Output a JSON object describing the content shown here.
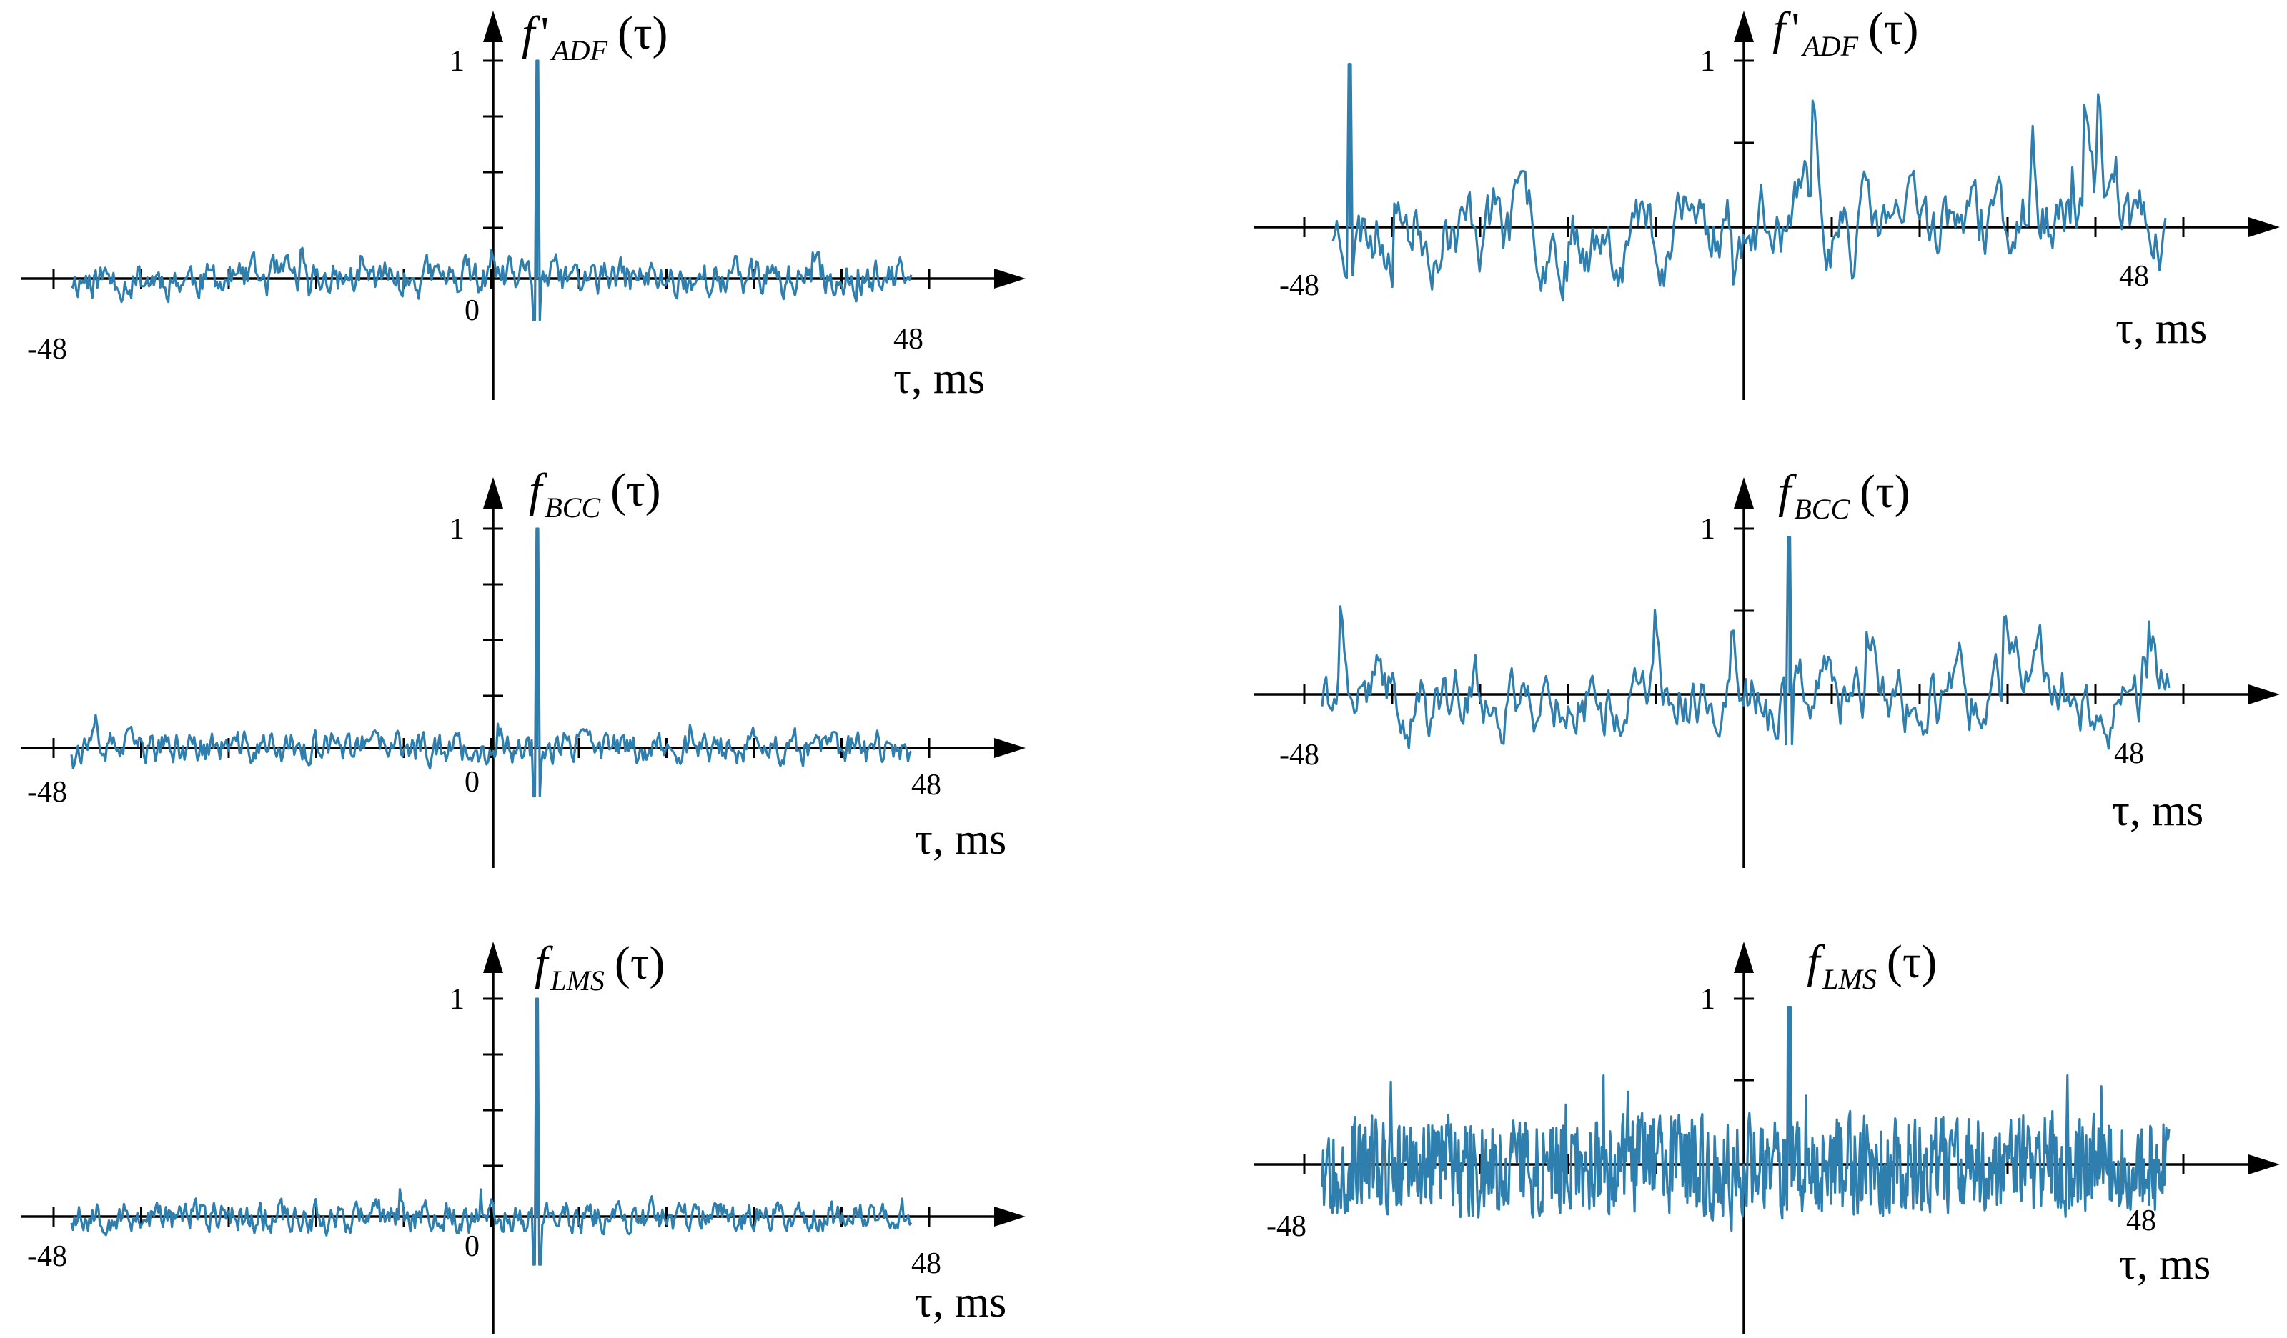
{
  "chart_data": [
    {
      "type": "line",
      "function_label": {
        "main": "f",
        "prime": "'",
        "sub": "ADF",
        "arg": "(τ)"
      },
      "xlabel": "τ, ms",
      "x_tick_labels": [
        "-48",
        "0",
        "48"
      ],
      "y_tick_labels": [
        "1"
      ],
      "xlim": [
        -48,
        48
      ],
      "ylim": [
        -0.45,
        1.0
      ],
      "peak": {
        "x": 5,
        "y": 1.0
      },
      "grid": false,
      "legend": "none",
      "color": "#2f7fae"
    },
    {
      "type": "line",
      "function_label": {
        "main": "f",
        "prime": "'",
        "sub": "ADF",
        "arg": "(τ)"
      },
      "xlabel": "τ, ms",
      "x_tick_labels": [
        "-48",
        "48"
      ],
      "y_tick_labels": [
        "1"
      ],
      "xlim": [
        -48,
        48
      ],
      "ylim": [
        -0.95,
        0.98
      ],
      "peak": {
        "x": -43,
        "y": 0.98
      },
      "grid": false,
      "legend": "none",
      "color": "#2f7fae"
    },
    {
      "type": "line",
      "function_label": {
        "main": "f",
        "prime": "",
        "sub": "BCC",
        "arg": "(τ)"
      },
      "xlabel": "τ, ms",
      "x_tick_labels": [
        "-48",
        "0",
        "48"
      ],
      "y_tick_labels": [
        "1"
      ],
      "xlim": [
        -48,
        48
      ],
      "ylim": [
        -0.4,
        1.0
      ],
      "peak": {
        "x": 5,
        "y": 1.0
      },
      "grid": false,
      "legend": "none",
      "color": "#2f7fae"
    },
    {
      "type": "line",
      "function_label": {
        "main": "f",
        "prime": "",
        "sub": "BCC",
        "arg": "(τ)"
      },
      "xlabel": "τ, ms",
      "x_tick_labels": [
        "-48",
        "48"
      ],
      "y_tick_labels": [
        "1"
      ],
      "xlim": [
        -48,
        48
      ],
      "ylim": [
        -0.9,
        0.95
      ],
      "peak": {
        "x": 5,
        "y": 0.95
      },
      "grid": false,
      "legend": "none",
      "color": "#2f7fae"
    },
    {
      "type": "line",
      "function_label": {
        "main": "f",
        "prime": "",
        "sub": "LMS",
        "arg": "(τ)"
      },
      "xlabel": "τ, ms",
      "x_tick_labels": [
        "-48",
        "0",
        "48"
      ],
      "y_tick_labels": [
        "1"
      ],
      "xlim": [
        -48,
        48
      ],
      "ylim": [
        -0.4,
        1.0
      ],
      "peak": {
        "x": 5,
        "y": 1.0
      },
      "grid": false,
      "legend": "none",
      "color": "#2f7fae"
    },
    {
      "type": "line",
      "function_label": {
        "main": "f",
        "prime": "",
        "sub": "LMS",
        "arg": "(τ)"
      },
      "xlabel": "τ, ms",
      "x_tick_labels": [
        "-48",
        "48"
      ],
      "y_tick_labels": [
        "1"
      ],
      "xlim": [
        -48,
        48
      ],
      "ylim": [
        -0.4,
        0.95
      ],
      "peak": {
        "x": 5,
        "y": 0.95
      },
      "grid": false,
      "legend": "none",
      "color": "#2f7fae"
    }
  ]
}
